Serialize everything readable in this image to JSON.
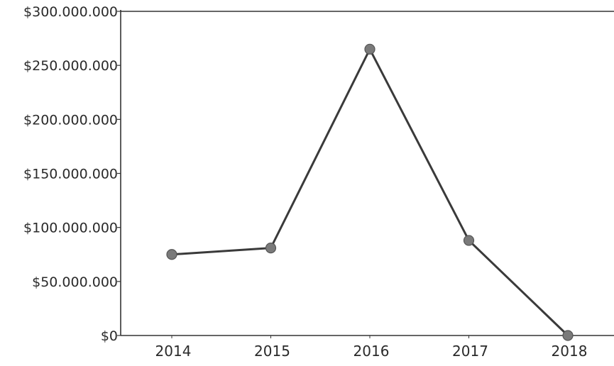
{
  "chart_data": {
    "type": "line",
    "title": "",
    "xlabel": "",
    "ylabel": "",
    "categories": [
      "2014",
      "2015",
      "2016",
      "2017",
      "2018"
    ],
    "series": [
      {
        "values": [
          75000000,
          81000000,
          265000000,
          88000000,
          0
        ]
      }
    ],
    "ylim": [
      0,
      300000000
    ],
    "yticks": [
      0,
      50000000,
      100000000,
      150000000,
      200000000,
      250000000,
      300000000
    ],
    "ytick_labels": [
      "$0",
      "$50.000.000",
      "$100.000.000",
      "$150.000.000",
      "$200.000.000",
      "$250.000.000",
      "$300.000.000"
    ],
    "grid": false,
    "legend": "none",
    "colors": {
      "line": "#3a3a3a",
      "marker": "#7a7a7a",
      "axis": "#333333"
    }
  }
}
